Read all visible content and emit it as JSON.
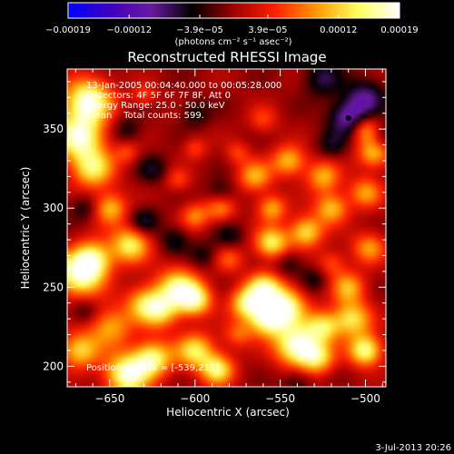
{
  "chart_data": {
    "type": "heatmap",
    "title": "Reconstructed RHESSI Image",
    "xlabel": "Heliocentric X (arcsec)",
    "ylabel": "Heliocentric Y (arcsec)",
    "xlim": [
      -675,
      -488
    ],
    "ylim": [
      187,
      388
    ],
    "x_ticks": [
      -650,
      -600,
      -550,
      -500
    ],
    "x_tick_labels": [
      "−650",
      "−600",
      "−550",
      "−500"
    ],
    "y_ticks": [
      200,
      250,
      300,
      350
    ],
    "y_tick_labels": [
      "200",
      "250",
      "300",
      "350"
    ],
    "colorbar": {
      "min": -0.00019,
      "max": 0.00019,
      "tick_values": [
        -0.00019,
        -0.00012,
        -3.9e-05,
        3.9e-05,
        0.00012,
        0.00019
      ],
      "tick_labels": [
        "−0.00019",
        "−0.00012",
        "−3.9e−05",
        "3.9e−05",
        "0.00012",
        "0.00019"
      ],
      "unit_label": "(photons cm⁻² s⁻¹ asec⁻²)",
      "colors": [
        "#0000ff",
        "#4000c0",
        "#6a1aa0",
        "#000000",
        "#a00000",
        "#ff2000",
        "#ff9a00",
        "#ffff60",
        "#ffffff"
      ]
    },
    "info_lines": [
      "13-Jan-2005 00:04:40.000 to 00:05:28.000",
      "Detectors: 4F 5F 6F 7F 8F, Att 0",
      "Energy Range: 25.0 - 50.0 keV",
      "Clean    Total counts: 599."
    ],
    "peak_label": "Position of Peak = [-539,211]",
    "peak": {
      "x": -539,
      "y": 211
    },
    "min_marker": {
      "x": -510,
      "y": 357
    },
    "blobs": [
      {
        "x": -663,
        "y": 368,
        "a": 0.95,
        "s": 10
      },
      {
        "x": -668,
        "y": 345,
        "a": 0.9,
        "s": 10
      },
      {
        "x": -660,
        "y": 325,
        "a": 0.7,
        "s": 9
      },
      {
        "x": -650,
        "y": 300,
        "a": 0.6,
        "s": 7
      },
      {
        "x": -668,
        "y": 258,
        "a": 0.9,
        "s": 10
      },
      {
        "x": -660,
        "y": 268,
        "a": 0.7,
        "s": 8
      },
      {
        "x": -638,
        "y": 277,
        "a": 0.75,
        "s": 8
      },
      {
        "x": -650,
        "y": 225,
        "a": 0.55,
        "s": 9
      },
      {
        "x": -668,
        "y": 210,
        "a": 0.65,
        "s": 8
      },
      {
        "x": -630,
        "y": 240,
        "a": 0.55,
        "s": 8
      },
      {
        "x": -610,
        "y": 250,
        "a": 0.75,
        "s": 9
      },
      {
        "x": -620,
        "y": 235,
        "a": 0.6,
        "s": 8
      },
      {
        "x": -600,
        "y": 242,
        "a": 0.75,
        "s": 7
      },
      {
        "x": -640,
        "y": 195,
        "a": 0.95,
        "s": 9
      },
      {
        "x": -625,
        "y": 205,
        "a": 0.8,
        "s": 8
      },
      {
        "x": -600,
        "y": 210,
        "a": 0.7,
        "s": 8
      },
      {
        "x": -587,
        "y": 198,
        "a": 0.75,
        "s": 7
      },
      {
        "x": -570,
        "y": 240,
        "a": 0.7,
        "s": 7
      },
      {
        "x": -560,
        "y": 250,
        "a": 0.7,
        "s": 7
      },
      {
        "x": -558,
        "y": 230,
        "a": 0.8,
        "s": 8
      },
      {
        "x": -548,
        "y": 238,
        "a": 0.9,
        "s": 9
      },
      {
        "x": -540,
        "y": 213,
        "a": 1.0,
        "s": 9
      },
      {
        "x": -555,
        "y": 278,
        "a": 0.75,
        "s": 7
      },
      {
        "x": -535,
        "y": 285,
        "a": 0.7,
        "s": 7
      },
      {
        "x": -555,
        "y": 300,
        "a": 0.55,
        "s": 6
      },
      {
        "x": -525,
        "y": 225,
        "a": 0.65,
        "s": 7
      },
      {
        "x": -528,
        "y": 205,
        "a": 0.6,
        "s": 7
      },
      {
        "x": -508,
        "y": 230,
        "a": 0.7,
        "s": 8
      },
      {
        "x": -500,
        "y": 210,
        "a": 0.85,
        "s": 7
      },
      {
        "x": -510,
        "y": 250,
        "a": 0.55,
        "s": 7
      },
      {
        "x": -498,
        "y": 275,
        "a": 0.5,
        "s": 7
      },
      {
        "x": -520,
        "y": 300,
        "a": 0.6,
        "s": 7
      },
      {
        "x": -500,
        "y": 310,
        "a": 0.5,
        "s": 7
      },
      {
        "x": -565,
        "y": 320,
        "a": 0.55,
        "s": 7
      },
      {
        "x": -545,
        "y": 330,
        "a": 0.6,
        "s": 7
      },
      {
        "x": -525,
        "y": 320,
        "a": 0.55,
        "s": 7
      },
      {
        "x": -495,
        "y": 335,
        "a": 0.6,
        "s": 7
      },
      {
        "x": -500,
        "y": 350,
        "a": 0.55,
        "s": 6
      },
      {
        "x": -585,
        "y": 300,
        "a": 0.45,
        "s": 6
      },
      {
        "x": -600,
        "y": 295,
        "a": 0.45,
        "s": 6
      },
      {
        "x": -640,
        "y": 335,
        "a": 0.3,
        "s": 5
      },
      {
        "x": -630,
        "y": 372,
        "a": 0.3,
        "s": 5
      },
      {
        "x": -600,
        "y": 338,
        "a": 0.3,
        "s": 5
      },
      {
        "x": -575,
        "y": 335,
        "a": 0.3,
        "s": 5
      },
      {
        "x": -560,
        "y": 356,
        "a": 0.3,
        "s": 6
      },
      {
        "x": -610,
        "y": 318,
        "a": 0.3,
        "s": 5
      },
      {
        "x": -575,
        "y": 220,
        "a": 0.35,
        "s": 6
      },
      {
        "x": -580,
        "y": 268,
        "a": 0.35,
        "s": 6
      },
      {
        "x": -520,
        "y": 265,
        "a": 0.35,
        "s": 6
      },
      {
        "x": -630,
        "y": 292,
        "a": -0.35,
        "s": 6
      },
      {
        "x": -612,
        "y": 280,
        "a": -0.3,
        "s": 6
      },
      {
        "x": -595,
        "y": 270,
        "a": -0.25,
        "s": 6
      },
      {
        "x": -580,
        "y": 282,
        "a": -0.25,
        "s": 6
      },
      {
        "x": -640,
        "y": 350,
        "a": -0.25,
        "s": 6
      },
      {
        "x": -625,
        "y": 325,
        "a": -0.28,
        "s": 6
      },
      {
        "x": -600,
        "y": 360,
        "a": -0.25,
        "s": 6
      },
      {
        "x": -585,
        "y": 310,
        "a": -0.25,
        "s": 6
      },
      {
        "x": -545,
        "y": 265,
        "a": -0.25,
        "s": 6
      },
      {
        "x": -530,
        "y": 255,
        "a": -0.25,
        "s": 6
      },
      {
        "x": -540,
        "y": 190,
        "a": -0.25,
        "s": 6
      },
      {
        "x": -665,
        "y": 235,
        "a": -0.25,
        "s": 6
      },
      {
        "x": -665,
        "y": 300,
        "a": -0.25,
        "s": 6
      },
      {
        "x": -520,
        "y": 340,
        "a": -0.25,
        "s": 6
      },
      {
        "x": -510,
        "y": 357,
        "a": -0.55,
        "s": 8
      },
      {
        "x": -500,
        "y": 370,
        "a": -0.45,
        "s": 8
      },
      {
        "x": -525,
        "y": 382,
        "a": -0.35,
        "s": 8
      },
      {
        "x": -490,
        "y": 345,
        "a": -0.3,
        "s": 6
      }
    ]
  }
}
